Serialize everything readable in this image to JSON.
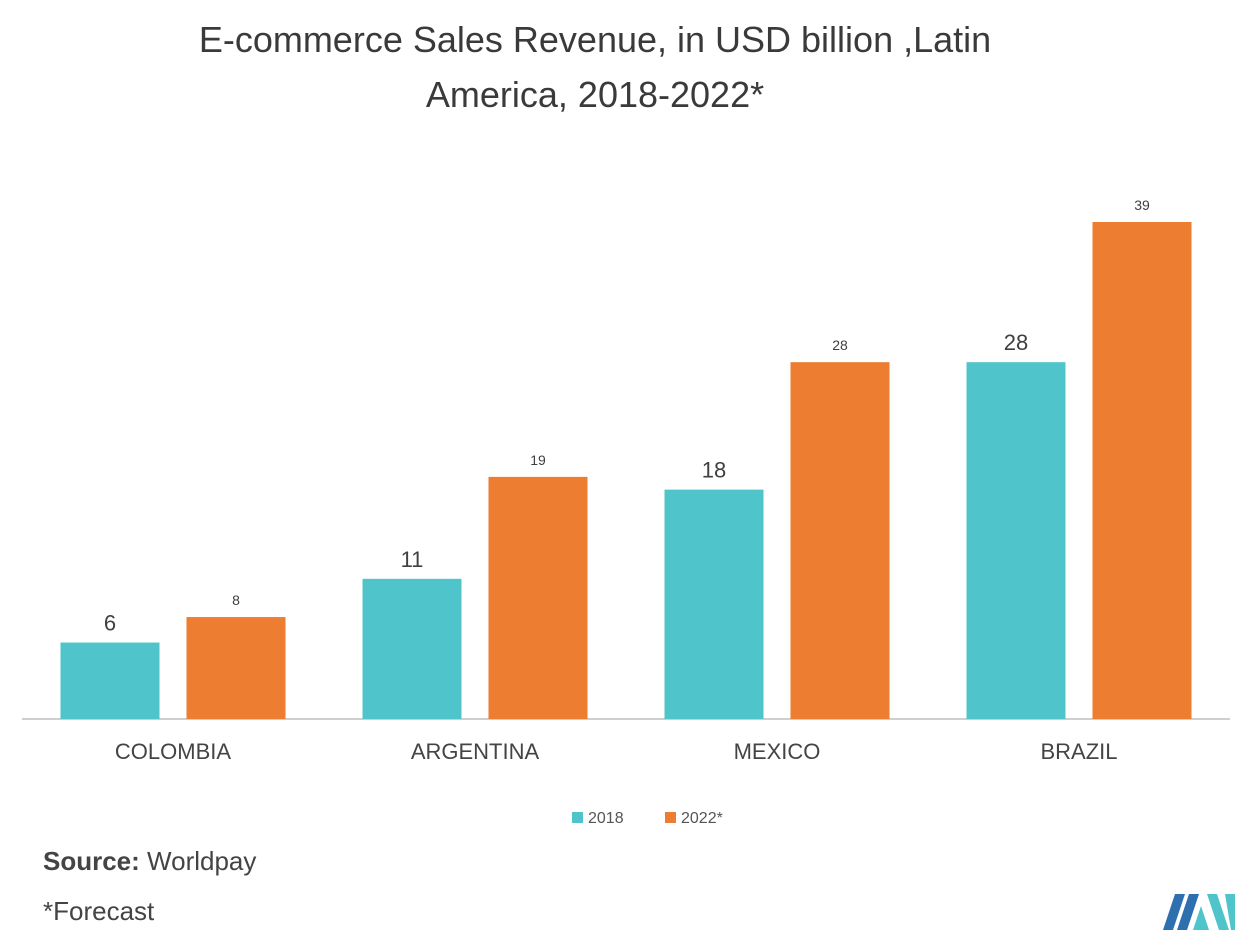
{
  "title_line1": "E-commerce Sales Revenue, in USD billion ,Latin",
  "title_line2": "America, 2018-2022*",
  "source_label": "Source:",
  "source_value": "Worldpay",
  "footnote": "*Forecast",
  "colors": {
    "s2018": "#4fc4ca",
    "s2022": "#ed7d31",
    "axis": "#bfbfbf",
    "text": "#444444"
  },
  "chart_data": {
    "type": "bar",
    "categories": [
      "COLOMBIA",
      "ARGENTINA",
      "MEXICO",
      "BRAZIL"
    ],
    "series": [
      {
        "name": "2018",
        "values": [
          6,
          11,
          18,
          28
        ]
      },
      {
        "name": "2022*",
        "values": [
          8,
          19,
          28,
          39
        ]
      }
    ],
    "ylim": [
      0,
      39
    ],
    "grid": false,
    "legend": "bottom-center",
    "data_labels": true
  }
}
